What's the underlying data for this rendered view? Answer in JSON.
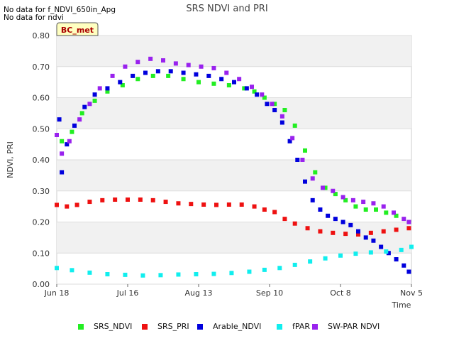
{
  "notes": [
    "No data for f_NDVI_650in_Apg",
    "No data for ndvi"
  ],
  "chart_data": {
    "type": "scatter",
    "title": "SRS NDVI and PRI",
    "xlabel": "Time",
    "ylabel": "NDVI, PRI",
    "xlim": [
      "2018-06-18",
      "2018-11-05"
    ],
    "ylim": [
      0.0,
      0.8
    ],
    "x_ticks": [
      "Jun 18",
      "Jul 16",
      "Aug 13",
      "Sep 10",
      "Oct 8",
      "Nov 5"
    ],
    "y_ticks": [
      "0.00",
      "0.10",
      "0.20",
      "0.30",
      "0.40",
      "0.50",
      "0.60",
      "0.70",
      "0.80"
    ],
    "grid": "horizontal bands",
    "legend_position": "bottom",
    "site_badge": "BC_met",
    "series": [
      {
        "name": "SRS_NDVI",
        "color": "#22ee22",
        "x": [
          "2018-06-20",
          "2018-06-24",
          "2018-06-28",
          "2018-07-03",
          "2018-07-08",
          "2018-07-14",
          "2018-07-20",
          "2018-07-26",
          "2018-08-01",
          "2018-08-07",
          "2018-08-13",
          "2018-08-19",
          "2018-08-25",
          "2018-08-31",
          "2018-09-04",
          "2018-09-08",
          "2018-09-12",
          "2018-09-16",
          "2018-09-20",
          "2018-09-24",
          "2018-09-28",
          "2018-10-02",
          "2018-10-06",
          "2018-10-10",
          "2018-10-14",
          "2018-10-18",
          "2018-10-22",
          "2018-10-26",
          "2018-10-30",
          "2018-11-04"
        ],
        "y": [
          0.46,
          0.49,
          0.55,
          0.59,
          0.62,
          0.64,
          0.66,
          0.67,
          0.67,
          0.66,
          0.65,
          0.645,
          0.64,
          0.63,
          0.62,
          0.6,
          0.58,
          0.56,
          0.51,
          0.43,
          0.36,
          0.31,
          0.29,
          0.27,
          0.25,
          0.24,
          0.24,
          0.23,
          0.22,
          0.2
        ]
      },
      {
        "name": "SRS_PRI",
        "color": "#ee1111",
        "x": [
          "2018-06-18",
          "2018-06-22",
          "2018-06-26",
          "2018-07-01",
          "2018-07-06",
          "2018-07-11",
          "2018-07-16",
          "2018-07-21",
          "2018-07-26",
          "2018-07-31",
          "2018-08-05",
          "2018-08-10",
          "2018-08-15",
          "2018-08-20",
          "2018-08-25",
          "2018-08-30",
          "2018-09-04",
          "2018-09-08",
          "2018-09-12",
          "2018-09-16",
          "2018-09-20",
          "2018-09-25",
          "2018-09-30",
          "2018-10-05",
          "2018-10-10",
          "2018-10-15",
          "2018-10-20",
          "2018-10-25",
          "2018-10-30",
          "2018-11-04"
        ],
        "y": [
          0.255,
          0.25,
          0.255,
          0.265,
          0.27,
          0.272,
          0.272,
          0.272,
          0.27,
          0.265,
          0.26,
          0.258,
          0.256,
          0.255,
          0.256,
          0.256,
          0.25,
          0.24,
          0.232,
          0.21,
          0.195,
          0.18,
          0.17,
          0.165,
          0.162,
          0.16,
          0.165,
          0.17,
          0.175,
          0.18
        ]
      },
      {
        "name": "Arable_NDVI",
        "color": "#0000dd",
        "x": [
          "2018-06-19",
          "2018-06-20",
          "2018-06-22",
          "2018-06-25",
          "2018-06-29",
          "2018-07-03",
          "2018-07-08",
          "2018-07-13",
          "2018-07-18",
          "2018-07-23",
          "2018-07-28",
          "2018-08-02",
          "2018-08-07",
          "2018-08-12",
          "2018-08-17",
          "2018-08-22",
          "2018-08-27",
          "2018-09-01",
          "2018-09-05",
          "2018-09-09",
          "2018-09-12",
          "2018-09-15",
          "2018-09-18",
          "2018-09-21",
          "2018-09-24",
          "2018-09-27",
          "2018-09-30",
          "2018-10-03",
          "2018-10-06",
          "2018-10-09",
          "2018-10-12",
          "2018-10-15",
          "2018-10-18",
          "2018-10-21",
          "2018-10-24",
          "2018-10-27",
          "2018-10-30",
          "2018-11-02",
          "2018-11-04"
        ],
        "y": [
          0.53,
          0.36,
          0.45,
          0.51,
          0.57,
          0.61,
          0.63,
          0.65,
          0.67,
          0.68,
          0.685,
          0.685,
          0.68,
          0.675,
          0.67,
          0.66,
          0.65,
          0.63,
          0.61,
          0.58,
          0.56,
          0.52,
          0.46,
          0.4,
          0.33,
          0.27,
          0.24,
          0.22,
          0.21,
          0.2,
          0.19,
          0.17,
          0.15,
          0.14,
          0.12,
          0.1,
          0.08,
          0.06,
          0.04
        ]
      },
      {
        "name": "fPAR",
        "color": "#11eeee",
        "x": [
          "2018-06-18",
          "2018-06-24",
          "2018-07-01",
          "2018-07-08",
          "2018-07-15",
          "2018-07-22",
          "2018-07-29",
          "2018-08-05",
          "2018-08-12",
          "2018-08-19",
          "2018-08-26",
          "2018-09-02",
          "2018-09-08",
          "2018-09-14",
          "2018-09-20",
          "2018-09-26",
          "2018-10-02",
          "2018-10-08",
          "2018-10-14",
          "2018-10-20",
          "2018-10-26",
          "2018-11-01",
          "2018-11-05"
        ],
        "y": [
          0.052,
          0.045,
          0.037,
          0.032,
          0.03,
          0.028,
          0.029,
          0.031,
          0.032,
          0.033,
          0.036,
          0.04,
          0.046,
          0.052,
          0.062,
          0.073,
          0.083,
          0.092,
          0.098,
          0.102,
          0.105,
          0.11,
          0.12
        ]
      },
      {
        "name": "SW-PAR NDVI",
        "color": "#9922ee",
        "x": [
          "2018-06-18",
          "2018-06-20",
          "2018-06-23",
          "2018-06-27",
          "2018-07-01",
          "2018-07-05",
          "2018-07-10",
          "2018-07-15",
          "2018-07-20",
          "2018-07-25",
          "2018-07-30",
          "2018-08-04",
          "2018-08-09",
          "2018-08-14",
          "2018-08-19",
          "2018-08-24",
          "2018-08-29",
          "2018-09-03",
          "2018-09-07",
          "2018-09-11",
          "2018-09-15",
          "2018-09-19",
          "2018-09-23",
          "2018-09-27",
          "2018-10-01",
          "2018-10-05",
          "2018-10-09",
          "2018-10-13",
          "2018-10-17",
          "2018-10-21",
          "2018-10-25",
          "2018-10-29",
          "2018-11-02",
          "2018-11-04"
        ],
        "y": [
          0.48,
          0.42,
          0.46,
          0.53,
          0.58,
          0.63,
          0.67,
          0.7,
          0.715,
          0.725,
          0.72,
          0.71,
          0.705,
          0.7,
          0.695,
          0.68,
          0.66,
          0.635,
          0.61,
          0.58,
          0.54,
          0.47,
          0.4,
          0.34,
          0.31,
          0.3,
          0.28,
          0.27,
          0.265,
          0.26,
          0.25,
          0.23,
          0.21,
          0.2
        ]
      }
    ]
  }
}
